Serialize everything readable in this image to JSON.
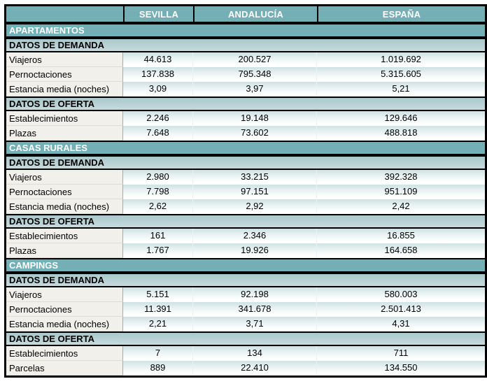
{
  "table": {
    "columns": [
      "SEVILLA",
      "ANDALUCÍA",
      "ESPAÑA"
    ],
    "colors": {
      "header_teal": "#73afb5",
      "group_bar_teal": "#aecbce",
      "value_cell_top": "#cfe2e4",
      "label_bg": "#f1f0eb",
      "border": "#000000",
      "header_text": "#ffffff"
    },
    "sections": [
      {
        "title": "APARTAMENTOS",
        "groups": [
          {
            "title": "DATOS DE DEMANDA",
            "rows": [
              {
                "label": "Viajeros",
                "values": [
                  "44.613",
                  "200.527",
                  "1.019.692"
                ]
              },
              {
                "label": "Pernoctaciones",
                "values": [
                  "137.838",
                  "795.348",
                  "5.315.605"
                ]
              },
              {
                "label": "Estancia media (noches)",
                "values": [
                  "3,09",
                  "3,97",
                  "5,21"
                ]
              }
            ]
          },
          {
            "title": "DATOS DE OFERTA",
            "rows": [
              {
                "label": "Establecimientos",
                "values": [
                  "2.246",
                  "19.148",
                  "129.646"
                ]
              },
              {
                "label": "Plazas",
                "values": [
                  "7.648",
                  "73.602",
                  "488.818"
                ]
              }
            ]
          }
        ]
      },
      {
        "title": "CASAS RURALES",
        "groups": [
          {
            "title": "DATOS DE DEMANDA",
            "rows": [
              {
                "label": "Viajeros",
                "values": [
                  "2.980",
                  "33.215",
                  "392.328"
                ]
              },
              {
                "label": "Pernoctaciones",
                "values": [
                  "7.798",
                  "97.151",
                  "951.109"
                ]
              },
              {
                "label": "Estancia media (noches)",
                "values": [
                  "2,62",
                  "2,92",
                  "2,42"
                ]
              }
            ]
          },
          {
            "title": "DATOS DE OFERTA",
            "rows": [
              {
                "label": "Establecimientos",
                "values": [
                  "161",
                  "2.346",
                  "16.855"
                ]
              },
              {
                "label": "Plazas",
                "values": [
                  "1.767",
                  "19.926",
                  "164.658"
                ]
              }
            ]
          }
        ]
      },
      {
        "title": "CAMPINGS",
        "groups": [
          {
            "title": "DATOS DE DEMANDA",
            "rows": [
              {
                "label": "Viajeros",
                "values": [
                  "5.151",
                  "92.198",
                  "580.003"
                ]
              },
              {
                "label": "Pernoctaciones",
                "values": [
                  "11.391",
                  "341.678",
                  "2.501.413"
                ]
              },
              {
                "label": "Estancia media (noches)",
                "values": [
                  "2,21",
                  "3,71",
                  "4,31"
                ]
              }
            ]
          },
          {
            "title": "DATOS DE OFERTA",
            "rows": [
              {
                "label": "Establecimientos",
                "values": [
                  "7",
                  "134",
                  "711"
                ]
              },
              {
                "label": "Parcelas",
                "values": [
                  "889",
                  "22.410",
                  "134.550"
                ]
              }
            ]
          }
        ]
      }
    ]
  },
  "chart_data": {
    "type": "table",
    "columns": [
      "",
      "SEVILLA",
      "ANDALUCÍA",
      "ESPAÑA"
    ],
    "number_format": "es-ES",
    "sections": [
      {
        "section": "APARTAMENTOS",
        "datos_de_demanda": {
          "Viajeros": [
            44613,
            200527,
            1019692
          ],
          "Pernoctaciones": [
            137838,
            795348,
            5315605
          ],
          "Estancia media (noches)": [
            3.09,
            3.97,
            5.21
          ]
        },
        "datos_de_oferta": {
          "Establecimientos": [
            2246,
            19148,
            129646
          ],
          "Plazas": [
            7648,
            73602,
            488818
          ]
        }
      },
      {
        "section": "CASAS RURALES",
        "datos_de_demanda": {
          "Viajeros": [
            2980,
            33215,
            392328
          ],
          "Pernoctaciones": [
            7798,
            97151,
            951109
          ],
          "Estancia media (noches)": [
            2.62,
            2.92,
            2.42
          ]
        },
        "datos_de_oferta": {
          "Establecimientos": [
            161,
            2346,
            16855
          ],
          "Plazas": [
            1767,
            19926,
            164658
          ]
        }
      },
      {
        "section": "CAMPINGS",
        "datos_de_demanda": {
          "Viajeros": [
            5151,
            92198,
            580003
          ],
          "Pernoctaciones": [
            11391,
            341678,
            2501413
          ],
          "Estancia media (noches)": [
            2.21,
            3.71,
            4.31
          ]
        },
        "datos_de_oferta": {
          "Establecimientos": [
            7,
            134,
            711
          ],
          "Parcelas": [
            889,
            22410,
            134550
          ]
        }
      }
    ]
  }
}
